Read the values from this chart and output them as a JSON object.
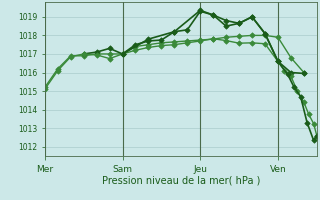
{
  "background_color": "#cce8e8",
  "grid_color": "#aacccc",
  "line_color_dark": "#1a5c1a",
  "line_color_light": "#3a8a3a",
  "xlabel": "Pression niveau de la mer( hPa )",
  "ylim": [
    1011.5,
    1019.8
  ],
  "yticks": [
    1012,
    1013,
    1014,
    1015,
    1016,
    1017,
    1018,
    1019
  ],
  "day_labels": [
    "Mer",
    "Sam",
    "Jeu",
    "Ven"
  ],
  "day_positions": [
    0,
    48,
    96,
    144
  ],
  "xmax": 168,
  "series1_x": [
    0,
    8,
    16,
    24,
    32,
    40,
    48,
    56,
    64,
    72,
    80,
    88,
    96,
    104,
    112,
    120,
    128,
    136,
    144,
    152,
    160
  ],
  "series1_y": [
    1015.2,
    1016.2,
    1016.9,
    1016.9,
    1017.0,
    1017.0,
    1017.0,
    1017.4,
    1017.5,
    1017.6,
    1017.65,
    1017.7,
    1017.75,
    1017.8,
    1017.9,
    1017.95,
    1018.0,
    1018.0,
    1017.9,
    1016.8,
    1016.0
  ],
  "series2_x": [
    24,
    32,
    40,
    48,
    56,
    64,
    72,
    80,
    88,
    96,
    104,
    112,
    120,
    128,
    136,
    144,
    152,
    160
  ],
  "series2_y": [
    1017.0,
    1017.1,
    1017.3,
    1017.0,
    1017.5,
    1017.7,
    1017.75,
    1018.2,
    1018.3,
    1019.3,
    1019.1,
    1018.5,
    1018.65,
    1019.0,
    1018.1,
    1016.6,
    1016.0,
    1015.95
  ],
  "series3_x": [
    0,
    8,
    16,
    24,
    32,
    40,
    48,
    56,
    64,
    72,
    80,
    88,
    96,
    104,
    112,
    120,
    128,
    136,
    144,
    148,
    152,
    156,
    160,
    163,
    166,
    168
  ],
  "series3_y": [
    1015.1,
    1016.1,
    1016.85,
    1017.0,
    1016.95,
    1016.75,
    1017.0,
    1017.2,
    1017.35,
    1017.45,
    1017.5,
    1017.6,
    1017.7,
    1017.82,
    1017.72,
    1017.58,
    1017.6,
    1017.55,
    1016.6,
    1016.1,
    1015.8,
    1015.0,
    1014.4,
    1013.75,
    1013.25,
    1012.6
  ],
  "series4_x": [
    48,
    64,
    80,
    96,
    104,
    112,
    120,
    128,
    136,
    144,
    150,
    154,
    158,
    162,
    166,
    168
  ],
  "series4_y": [
    1017.0,
    1017.8,
    1018.2,
    1019.35,
    1019.1,
    1018.8,
    1018.65,
    1019.0,
    1018.1,
    1016.6,
    1015.9,
    1015.2,
    1014.7,
    1013.3,
    1012.35,
    1012.6
  ]
}
